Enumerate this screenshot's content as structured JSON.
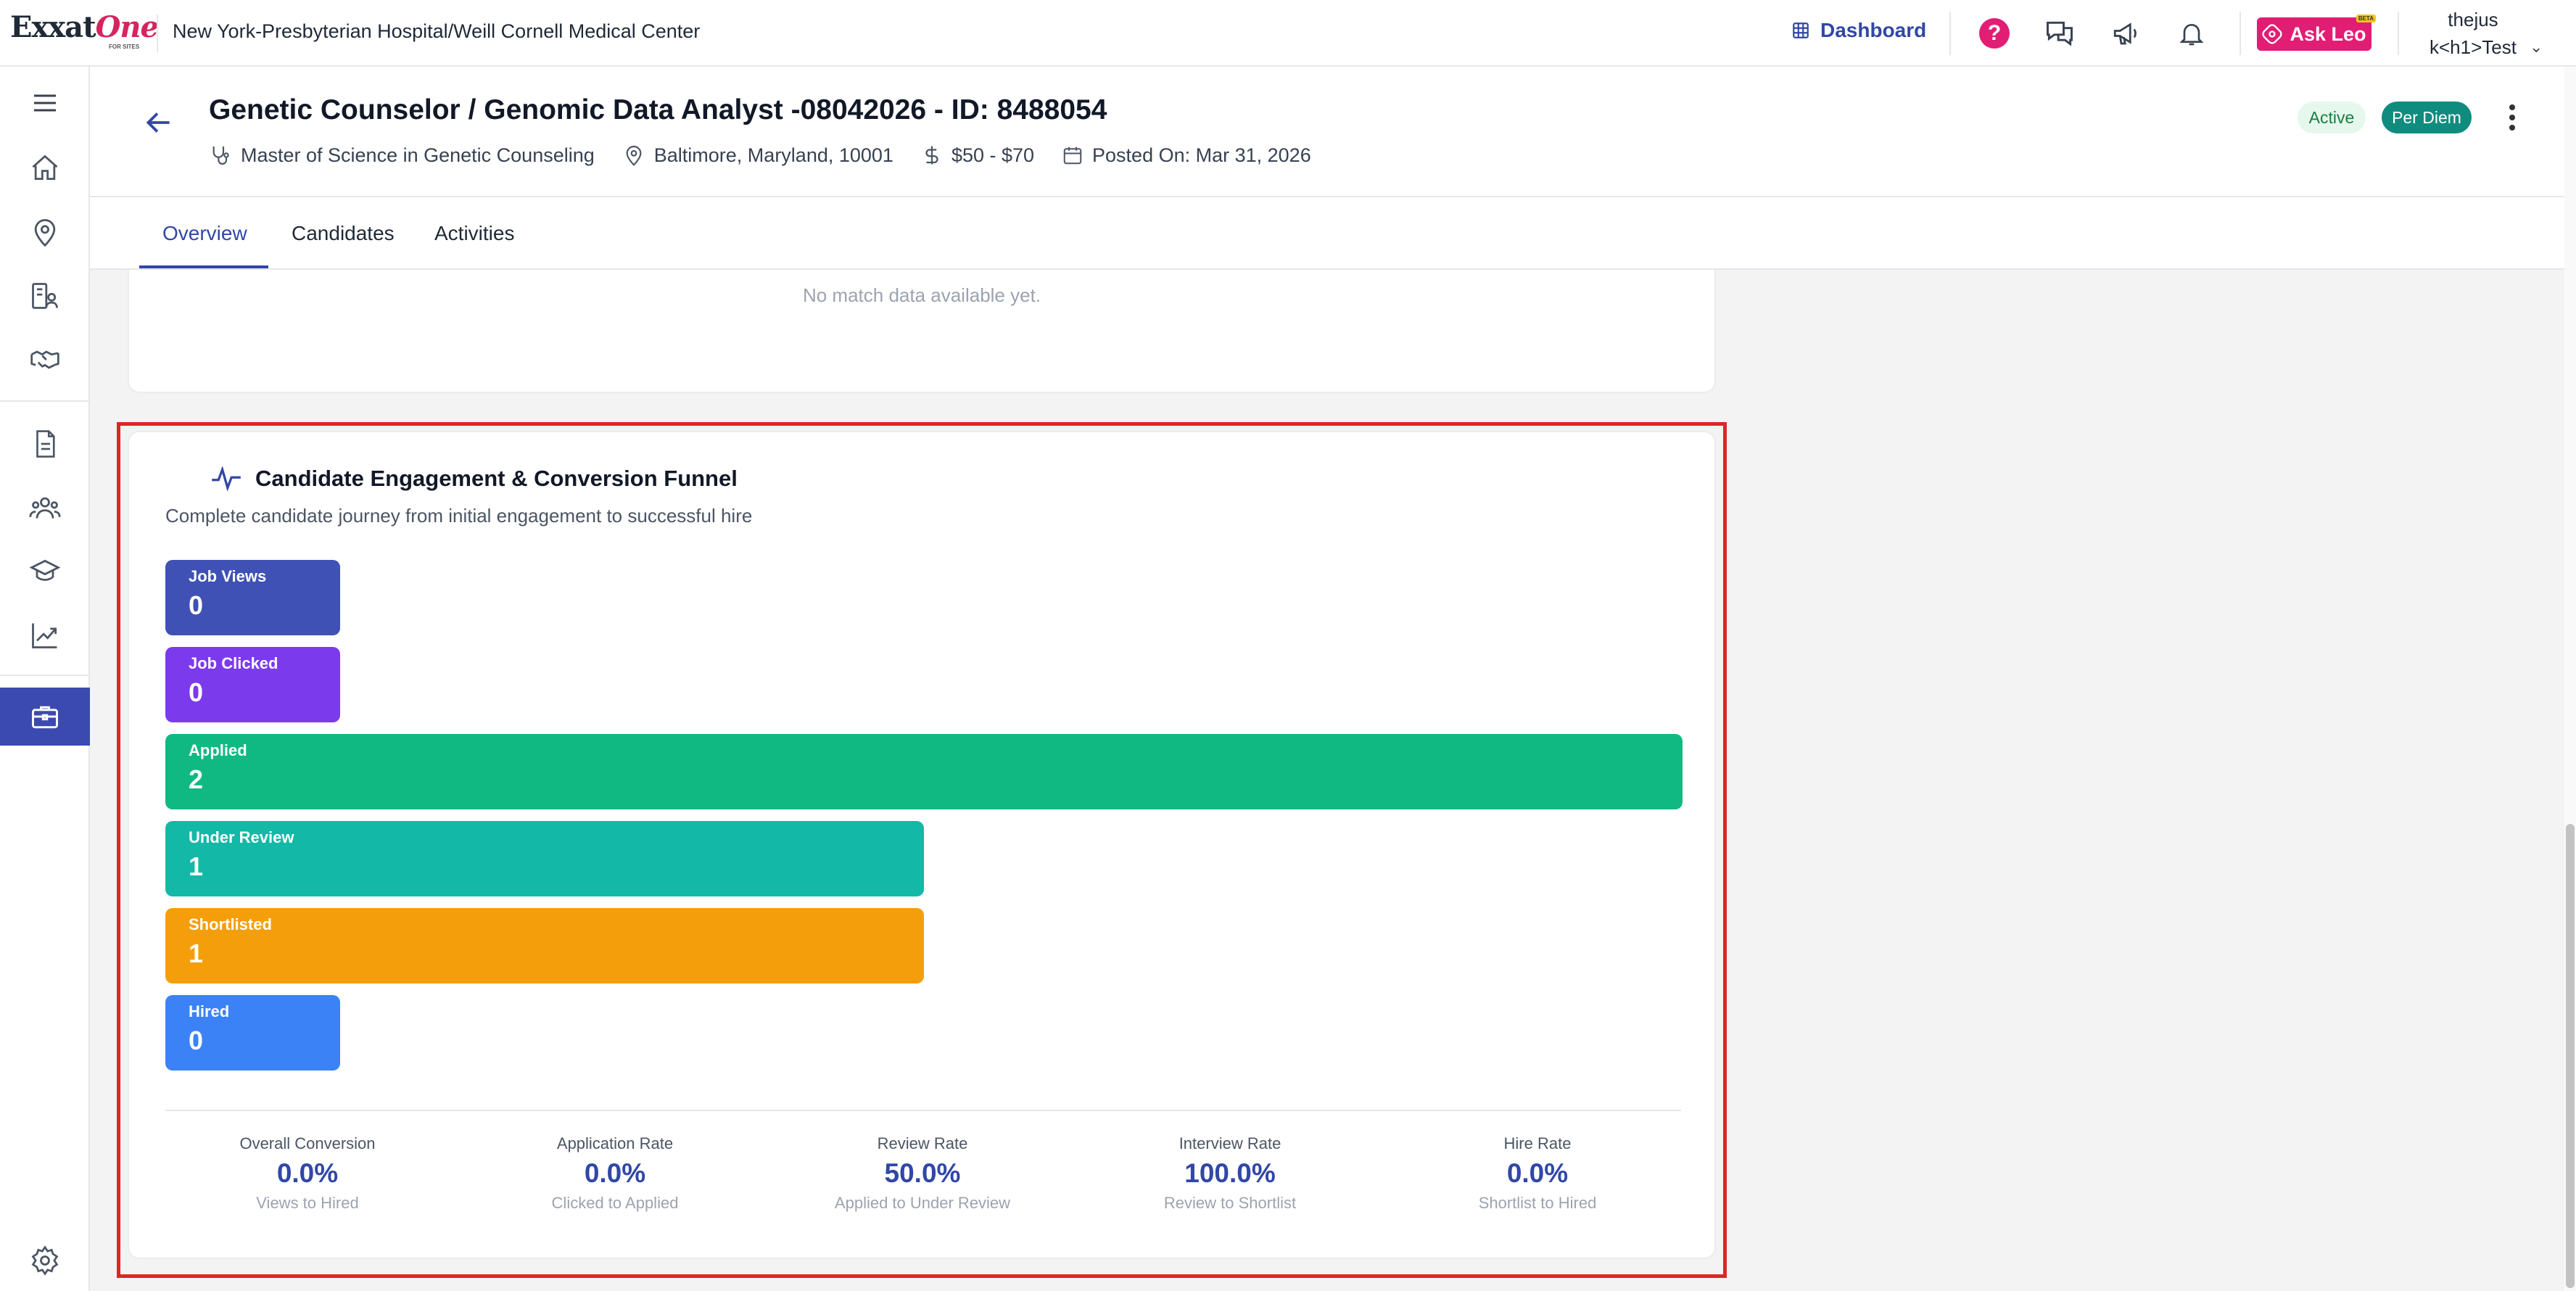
{
  "topbar": {
    "logo_text": "Exxat",
    "logo_accent": "One",
    "logo_sub": "FOR SITES",
    "hospital": "New York-Presbyterian Hospital/Weill Cornell Medical Center",
    "dashboard_label": "Dashboard",
    "help_symbol": "?",
    "ask_leo_label": "Ask Leo",
    "ask_leo_badge": "BETA",
    "user_name": "thejus",
    "user_org": "k<h1>Test"
  },
  "sidebar": {
    "items": [
      "menu-icon",
      "home-icon",
      "location-pin-icon",
      "profile-list-icon",
      "handshake-icon",
      "document-icon",
      "people-icon",
      "graduation-cap-icon",
      "trend-chart-icon",
      "briefcase-icon",
      "settings-icon"
    ],
    "active": "briefcase-icon"
  },
  "job": {
    "title": "Genetic Counselor / Genomic Data Analyst -08042026 - ID: 8488054",
    "degree": "Master of Science in Genetic Counseling",
    "location": "Baltimore, Maryland, 10001",
    "pay": "$50 - $70",
    "posted": "Posted On: Mar 31, 2026",
    "status_badge": "Active",
    "type_badge": "Per Diem"
  },
  "tabs": {
    "items": [
      "Overview",
      "Candidates",
      "Activities"
    ],
    "active": "Overview"
  },
  "prev_card": {
    "empty_text": "No match data available yet."
  },
  "funnel": {
    "title": "Candidate Engagement & Conversion Funnel",
    "subtitle": "Complete candidate journey from initial engagement to successful hire",
    "stages": [
      {
        "label": "Job Views",
        "value": "0",
        "fraction": 0.115,
        "color": "#3f51b5"
      },
      {
        "label": "Job Clicked",
        "value": "0",
        "fraction": 0.115,
        "color": "#7c3aed"
      },
      {
        "label": "Applied",
        "value": "2",
        "fraction": 1.0,
        "color": "#10b981"
      },
      {
        "label": "Under Review",
        "value": "1",
        "fraction": 0.5,
        "color": "#14b8a6"
      },
      {
        "label": "Shortlisted",
        "value": "1",
        "fraction": 0.5,
        "color": "#f59e0b"
      },
      {
        "label": "Hired",
        "value": "0",
        "fraction": 0.115,
        "color": "#3b82f6"
      }
    ],
    "stats": [
      {
        "label": "Overall Conversion",
        "value": "0.0%",
        "desc": "Views to Hired"
      },
      {
        "label": "Application Rate",
        "value": "0.0%",
        "desc": "Clicked to Applied"
      },
      {
        "label": "Review Rate",
        "value": "50.0%",
        "desc": "Applied to Under Review"
      },
      {
        "label": "Interview Rate",
        "value": "100.0%",
        "desc": "Review to Shortlist"
      },
      {
        "label": "Hire Rate",
        "value": "0.0%",
        "desc": "Shortlist to Hired"
      }
    ]
  }
}
